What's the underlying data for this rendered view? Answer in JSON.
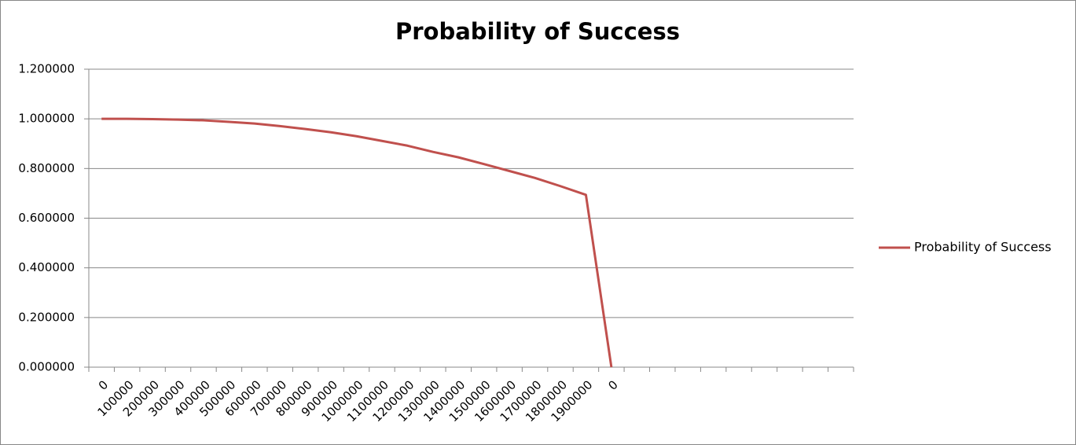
{
  "chart_data": {
    "type": "line",
    "title": "Probability of Success",
    "categories": [
      "0",
      "100000",
      "200000",
      "300000",
      "400000",
      "500000",
      "600000",
      "700000",
      "800000",
      "900000",
      "1000000",
      "1100000",
      "1200000",
      "1300000",
      "1400000",
      "1500000",
      "1600000",
      "1700000",
      "1800000",
      "1900000",
      "0",
      null,
      null,
      null,
      null,
      null,
      null,
      null,
      null,
      null
    ],
    "series": [
      {
        "name": "Probability of Success",
        "color": "#c0504d",
        "values": [
          1.0,
          1.0,
          0.999,
          0.997,
          0.994,
          0.988,
          0.981,
          0.971,
          0.959,
          0.946,
          0.93,
          0.911,
          0.892,
          0.867,
          0.845,
          0.818,
          0.79,
          0.762,
          0.729,
          0.694,
          0,
          null,
          null,
          null,
          null,
          null,
          null,
          null,
          null,
          null
        ]
      }
    ],
    "ylim": [
      0,
      1.2
    ],
    "yticks": [
      {
        "value": 0,
        "label": "0.000000"
      },
      {
        "value": 0.2,
        "label": "0.200000"
      },
      {
        "value": 0.4,
        "label": "0.400000"
      },
      {
        "value": 0.6,
        "label": "0.600000"
      },
      {
        "value": 0.8,
        "label": "0.800000"
      },
      {
        "value": 1.0,
        "label": "1.000000"
      },
      {
        "value": 1.2,
        "label": "1.200000"
      }
    ],
    "grid": true,
    "legend": "right"
  }
}
